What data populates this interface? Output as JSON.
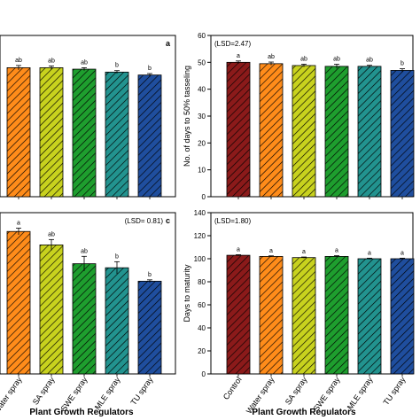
{
  "figure": {
    "xlabel": "Plant Growth Regulators"
  },
  "styles": {
    "bar_colors": [
      "#8b1a1a",
      "#ff8c1a",
      "#c8d21e",
      "#1e9e2e",
      "#22938f",
      "#1f4e9e"
    ]
  },
  "chart_data": [
    {
      "panel": "a",
      "type": "bar",
      "title": "",
      "lsd": "",
      "categories": [
        "Water spray",
        "SA spray",
        "SWE spray",
        "MLE spray",
        "TU spray"
      ],
      "values": [
        88,
        88,
        87,
        85,
        83
      ],
      "errors": [
        1.5,
        1.2,
        1.0,
        1.0,
        1.0
      ],
      "letters": [
        "ab",
        "ab",
        "ab",
        "b",
        "b"
      ],
      "color_index": [
        1,
        2,
        3,
        4,
        5
      ],
      "ylim": [
        0,
        110
      ],
      "ylabel": "",
      "yticks": [],
      "show_xticklabels": false,
      "x_extends_left": true
    },
    {
      "panel": "",
      "type": "bar",
      "title": "",
      "lsd": "(LSD=2.47)",
      "categories": [
        "Control",
        "Water spray",
        "SA spray",
        "SWE spray",
        "MLE spray",
        "TU spray"
      ],
      "values": [
        50,
        49.5,
        48.8,
        48.5,
        48.5,
        47
      ],
      "errors": [
        0.5,
        0.6,
        0.5,
        0.8,
        0.4,
        0.6
      ],
      "letters": [
        "a",
        "ab",
        "ab",
        "ab",
        "ab",
        "b"
      ],
      "color_index": [
        0,
        1,
        2,
        3,
        4,
        5
      ],
      "ylim": [
        0,
        60
      ],
      "ylabel": "No. of days to 50% tasseling",
      "yticks": [
        0,
        10,
        20,
        30,
        40,
        50,
        60
      ],
      "show_xticklabels": false,
      "x_extends_left": false
    },
    {
      "panel": "c",
      "type": "bar",
      "title": "",
      "lsd": "(LSD= 0.81)",
      "categories": [
        "Water spray",
        "SA spray",
        "SWE spray",
        "MLE spray",
        "TU spray"
      ],
      "values": [
        10.6,
        9.6,
        8.2,
        7.9,
        6.9
      ],
      "errors": [
        0.25,
        0.4,
        0.55,
        0.45,
        0.1
      ],
      "letters": [
        "a",
        "ab",
        "ab",
        "b",
        "b"
      ],
      "color_index": [
        1,
        2,
        3,
        4,
        5
      ],
      "ylim": [
        0,
        12
      ],
      "ylabel": "",
      "yticks": [],
      "show_xticklabels": true,
      "x_extends_left": true
    },
    {
      "panel": "",
      "type": "bar",
      "title": "",
      "lsd": "(LSD=1.80)",
      "categories": [
        "Control",
        "Water spray",
        "SA spray",
        "SWE spray",
        "MLE spray",
        "TU spray"
      ],
      "values": [
        103,
        102,
        101,
        102,
        100,
        100
      ],
      "errors": [
        0.5,
        0.5,
        0.5,
        0.6,
        0.5,
        0.5
      ],
      "letters": [
        "a",
        "a",
        "a",
        "a",
        "a",
        "a"
      ],
      "color_index": [
        0,
        1,
        2,
        3,
        4,
        5
      ],
      "ylim": [
        0,
        140
      ],
      "ylabel": "Days to maturity",
      "yticks": [
        0,
        20,
        40,
        60,
        80,
        100,
        120,
        140
      ],
      "show_xticklabels": true,
      "x_extends_left": false
    }
  ]
}
